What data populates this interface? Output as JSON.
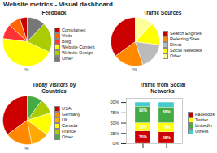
{
  "title": "Website metrics - Visual dashboard",
  "chart_data": [
    {
      "type": "pie",
      "title": "Feedback",
      "subtitle": "%",
      "categories": [
        "Complained",
        "Visits",
        "Blog",
        "Website Content",
        "Website Design",
        "Other"
      ],
      "values": [
        5,
        8,
        10,
        45,
        20,
        12
      ],
      "colors": [
        "#cc0000",
        "#ff6600",
        "#ff3333",
        "#ffff00",
        "#aacc00",
        "#777777"
      ],
      "legend": "right"
    },
    {
      "type": "pie",
      "title": "Traffic Sources",
      "subtitle": "%",
      "categories": [
        "Search Engines",
        "Referring Sites",
        "Direct",
        "Social Networks",
        "Other"
      ],
      "values": [
        35,
        20,
        18,
        15,
        12
      ],
      "colors": [
        "#cc0000",
        "#ff8800",
        "#bbbbbb",
        "#ffff00",
        "#ffff99"
      ],
      "legend": "right"
    },
    {
      "type": "pie",
      "title": "Today Visitors by\nCountries",
      "subtitle": "%",
      "categories": [
        "USA",
        "Germany",
        "UK",
        "Canada",
        "France",
        "Other"
      ],
      "values": [
        35,
        18,
        12,
        15,
        10,
        10
      ],
      "colors": [
        "#cc0000",
        "#ff8800",
        "#ffaa00",
        "#ffff00",
        "#aacc00",
        "#44aa44"
      ],
      "legend": "right"
    },
    {
      "type": "bar",
      "title": "Traffic from Social\nNetworks",
      "stacked": true,
      "grid": false,
      "legend": "right",
      "categories": [
        "Last Year",
        "Current Year"
      ],
      "series": [
        {
          "name": "Facebook",
          "color": "#cc0000",
          "values": [
            30,
            28
          ]
        },
        {
          "name": "Twitter",
          "color": "#ffff00",
          "values": [
            20,
            22
          ]
        },
        {
          "name": "LinkedIn",
          "color": "#44aa44",
          "values": [
            40,
            38
          ]
        },
        {
          "name": "Others",
          "color": "#44cccc",
          "values": [
            10,
            12
          ]
        }
      ],
      "ylim": [
        0,
        110
      ],
      "yticks": [
        {
          "value": 0,
          "label": "0%"
        },
        {
          "value": 25,
          "label": "25%"
        },
        {
          "value": 50,
          "label": "50%"
        },
        {
          "value": 75,
          "label": "75%"
        },
        {
          "value": 100,
          "label": "100%"
        }
      ],
      "annotations": [
        {
          "text": "30%",
          "x": "Last Year",
          "y": 15
        },
        {
          "text": "50%",
          "x": "Last Year",
          "y": 40
        },
        {
          "text": "90%",
          "x": "Last Year",
          "y": 80
        },
        {
          "text": "28%",
          "x": "Current Year",
          "y": 14
        },
        {
          "text": "50%",
          "x": "Current Year",
          "y": 39
        },
        {
          "text": "88%",
          "x": "Current Year",
          "y": 77
        }
      ]
    }
  ]
}
